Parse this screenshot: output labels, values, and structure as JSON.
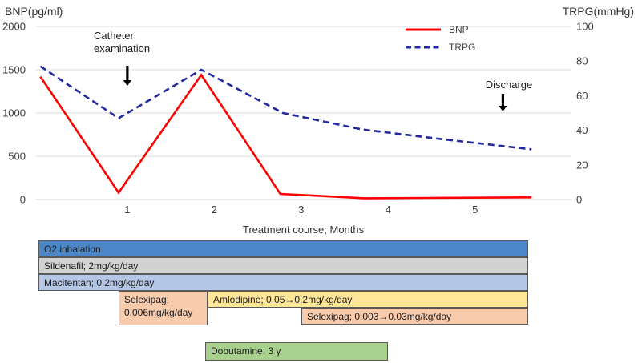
{
  "chart_data": {
    "type": "line",
    "title": "",
    "x_axis": {
      "label": "Treatment course; Months",
      "ticks": [
        1,
        2,
        3,
        4,
        5
      ],
      "range": [
        -0.05,
        6.1
      ]
    },
    "left_axis": {
      "label": "BNP(pg/ml)",
      "ticks": [
        0,
        500,
        1000,
        1500,
        2000
      ],
      "max": 2000
    },
    "right_axis": {
      "label": "TRPG(mmHg)",
      "ticks": [
        0,
        20,
        40,
        60,
        80,
        100
      ],
      "max": 100
    },
    "grid": "horizontal",
    "legend": {
      "position": "top-right",
      "items": [
        {
          "label": "BNP",
          "color": "#ff0000",
          "dash": false
        },
        {
          "label": "TRPG",
          "color": "#232b9e",
          "dash": true
        }
      ]
    },
    "series": [
      {
        "name": "BNP",
        "axis": "left",
        "color": "#ff0000",
        "dash": false,
        "points": [
          [
            0,
            1420
          ],
          [
            0.9,
            80
          ],
          [
            1.85,
            1440
          ],
          [
            2.76,
            65
          ],
          [
            3.73,
            15
          ],
          [
            5.65,
            25
          ]
        ]
      },
      {
        "name": "TRPG",
        "axis": "right",
        "color": "#232b9e",
        "dash": true,
        "points": [
          [
            0,
            77
          ],
          [
            0.9,
            47
          ],
          [
            1.85,
            75
          ],
          [
            2.79,
            50
          ],
          [
            3.7,
            40.5
          ],
          [
            4.6,
            35
          ],
          [
            5.65,
            29
          ]
        ]
      }
    ],
    "annotations": [
      {
        "id": "catheter",
        "text": "Catheter\nexamination",
        "arrow_month": 1.0
      },
      {
        "id": "discharge",
        "text": "Discharge",
        "arrow_month": 5.32
      }
    ]
  },
  "timeline": {
    "bars": [
      {
        "label": "O2 inhalation",
        "color": "#4a86c8",
        "row": 1,
        "rows_tall": 1,
        "start_month": -0.02,
        "end_month": 5.61
      },
      {
        "label": "Sildenafil; 2mg/kg/day",
        "color": "#d2d2d2",
        "row": 2,
        "rows_tall": 1,
        "start_month": -0.02,
        "end_month": 5.61
      },
      {
        "label": "Macitentan; 0.2mg/kg/day",
        "color": "#b4c7e7",
        "row": 3,
        "rows_tall": 1,
        "start_month": -0.02,
        "end_month": 5.61
      },
      {
        "label": "Selexipag; 0.006mg/kg/day",
        "color": "#f8cbad",
        "row": 4,
        "rows_tall": 2,
        "start_month": 0.9,
        "end_month": 1.92
      },
      {
        "label": "Amlodipine; 0.05→0.2mg/kg/day",
        "color": "#ffe699",
        "row": 4,
        "rows_tall": 1,
        "start_month": 1.92,
        "end_month": 5.61
      },
      {
        "label": "Selexipag; 0.003→0.03mg/kg/day",
        "color": "#f8cbad",
        "row": 5,
        "rows_tall": 1,
        "start_month": 3.0,
        "end_month": 5.61
      },
      {
        "label": "Dobutamine; 3 γ",
        "color": "#a9d18e",
        "row": 6,
        "rows_tall": 1,
        "start_month": 1.9,
        "end_month": 4.0
      }
    ]
  }
}
